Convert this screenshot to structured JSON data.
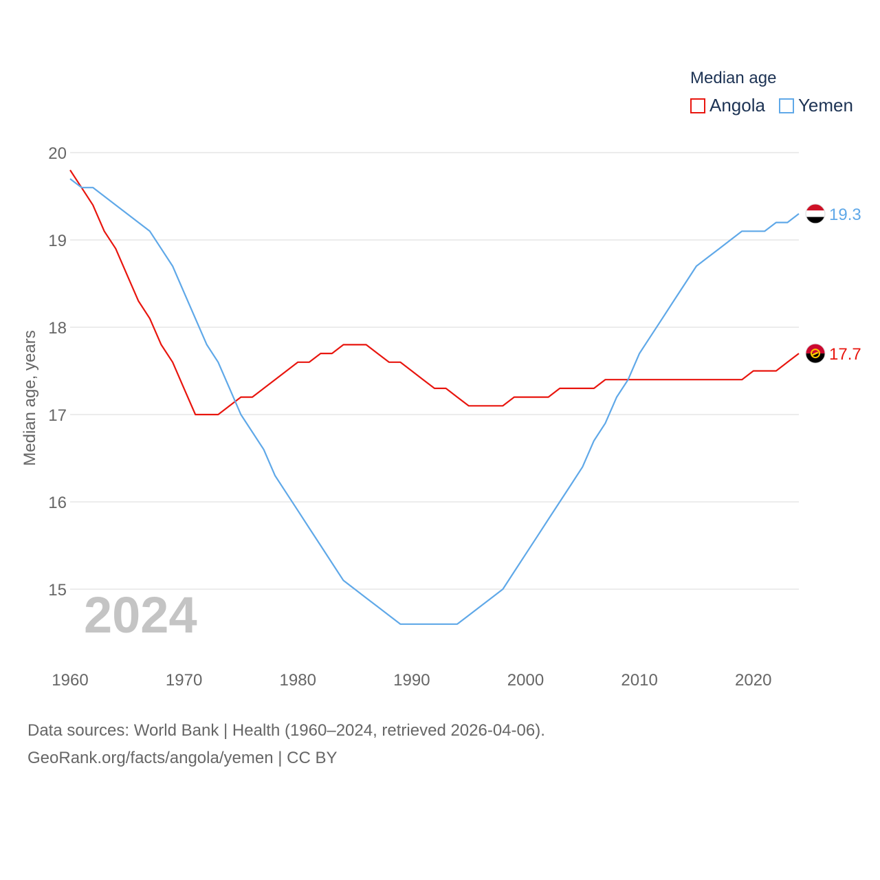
{
  "chart_data": {
    "type": "line",
    "legend_title": "Median age",
    "ylabel": "Median age, years",
    "xlabel": "",
    "xlim": [
      1960,
      2024
    ],
    "ylim": [
      14.3,
      20.1
    ],
    "x_ticks": [
      1960,
      1970,
      1980,
      1990,
      2000,
      2010,
      2020
    ],
    "y_ticks": [
      15,
      16,
      17,
      18,
      19,
      20
    ],
    "year_watermark": "2024",
    "x": [
      1960,
      1961,
      1962,
      1963,
      1964,
      1965,
      1966,
      1967,
      1968,
      1969,
      1970,
      1971,
      1972,
      1973,
      1974,
      1975,
      1976,
      1977,
      1978,
      1979,
      1980,
      1981,
      1982,
      1983,
      1984,
      1985,
      1986,
      1987,
      1988,
      1989,
      1990,
      1991,
      1992,
      1993,
      1994,
      1995,
      1996,
      1997,
      1998,
      1999,
      2000,
      2001,
      2002,
      2003,
      2004,
      2005,
      2006,
      2007,
      2008,
      2009,
      2010,
      2011,
      2012,
      2013,
      2014,
      2015,
      2016,
      2017,
      2018,
      2019,
      2020,
      2021,
      2022,
      2023,
      2024
    ],
    "series": [
      {
        "name": "Angola",
        "color": "#e8150e",
        "end_label": "17.7",
        "values": [
          19.8,
          19.6,
          19.4,
          19.1,
          18.9,
          18.6,
          18.3,
          18.1,
          17.8,
          17.6,
          17.3,
          17.0,
          17.0,
          17.0,
          17.1,
          17.2,
          17.2,
          17.3,
          17.4,
          17.5,
          17.6,
          17.6,
          17.7,
          17.7,
          17.8,
          17.8,
          17.8,
          17.7,
          17.6,
          17.6,
          17.5,
          17.4,
          17.3,
          17.3,
          17.2,
          17.1,
          17.1,
          17.1,
          17.1,
          17.2,
          17.2,
          17.2,
          17.2,
          17.3,
          17.3,
          17.3,
          17.3,
          17.4,
          17.4,
          17.4,
          17.4,
          17.4,
          17.4,
          17.4,
          17.4,
          17.4,
          17.4,
          17.4,
          17.4,
          17.4,
          17.5,
          17.5,
          17.5,
          17.6,
          17.7
        ]
      },
      {
        "name": "Yemen",
        "color": "#5fa8e8",
        "end_label": "19.3",
        "values": [
          19.7,
          19.6,
          19.6,
          19.5,
          19.4,
          19.3,
          19.2,
          19.1,
          18.9,
          18.7,
          18.4,
          18.1,
          17.8,
          17.6,
          17.3,
          17.0,
          16.8,
          16.6,
          16.3,
          16.1,
          15.9,
          15.7,
          15.5,
          15.3,
          15.1,
          15.0,
          14.9,
          14.8,
          14.7,
          14.6,
          14.6,
          14.6,
          14.6,
          14.6,
          14.6,
          14.7,
          14.8,
          14.9,
          15.0,
          15.2,
          15.4,
          15.6,
          15.8,
          16.0,
          16.2,
          16.4,
          16.7,
          16.9,
          17.2,
          17.4,
          17.7,
          17.9,
          18.1,
          18.3,
          18.5,
          18.7,
          18.8,
          18.9,
          19.0,
          19.1,
          19.1,
          19.1,
          19.2,
          19.2,
          19.3
        ]
      }
    ]
  },
  "footer": {
    "line1": "Data sources: World Bank | Health (1960–2024, retrieved 2026-04-06).",
    "line2": "GeoRank.org/facts/angola/yemen | CC BY"
  }
}
